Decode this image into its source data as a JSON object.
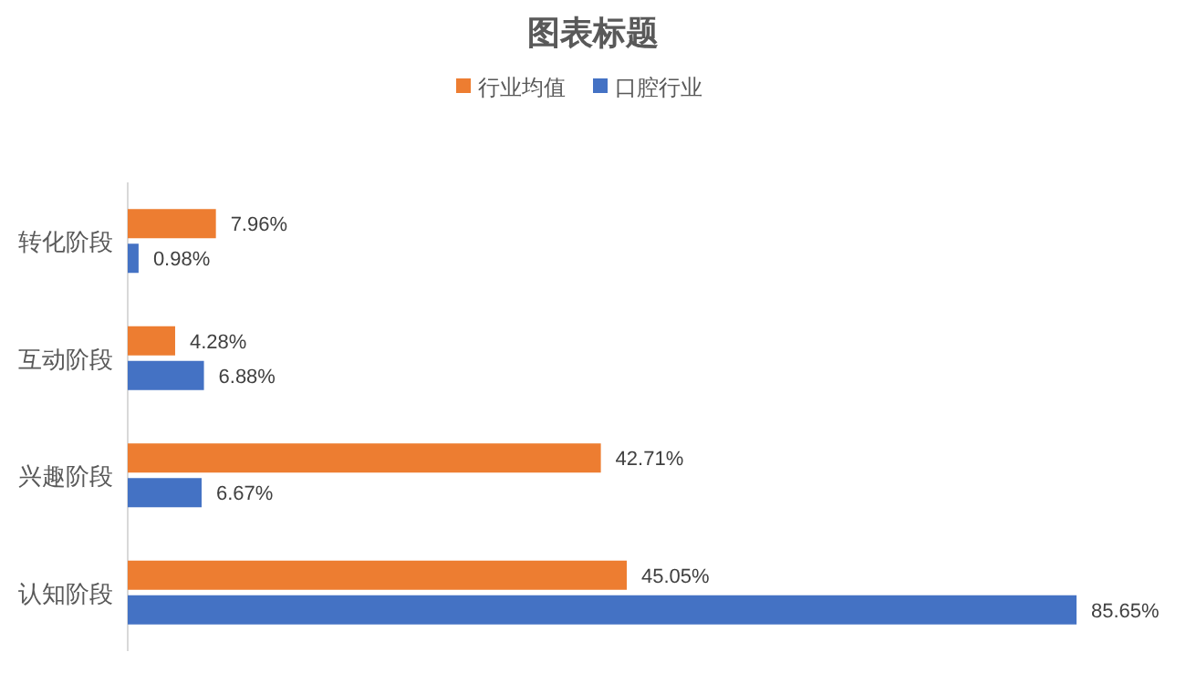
{
  "chart_data": {
    "type": "bar",
    "orientation": "horizontal",
    "title": "图表标题",
    "categories": [
      "转化阶段",
      "互动阶段",
      "兴趣阶段",
      "认知阶段"
    ],
    "series": [
      {
        "name": "行业均值",
        "color": "#ed7d31",
        "values": [
          7.96,
          4.28,
          42.71,
          45.05
        ],
        "value_labels": [
          "7.96%",
          "4.28%",
          "42.71%",
          "45.05%"
        ]
      },
      {
        "name": "口腔行业",
        "color": "#4472c4",
        "values": [
          0.98,
          6.88,
          6.67,
          85.65
        ],
        "value_labels": [
          "0.98%",
          "6.88%",
          "6.67%",
          "85.65%"
        ]
      }
    ],
    "legend": "top",
    "tick_labels": "y"
  }
}
